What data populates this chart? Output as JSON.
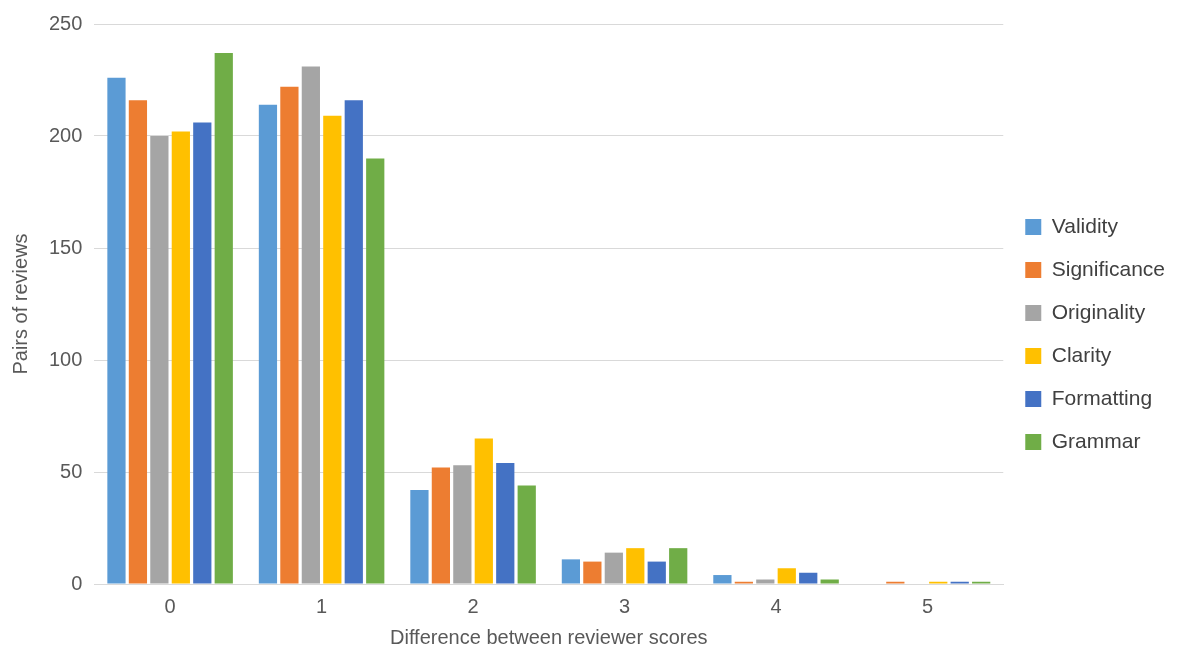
{
  "chart_data": {
    "type": "bar",
    "xlabel": "Difference between reviewer scores",
    "ylabel": "Pairs of reviews",
    "categories": [
      "0",
      "1",
      "2",
      "3",
      "4",
      "5"
    ],
    "series": [
      {
        "name": "Validity",
        "color": "#5b9bd5",
        "values": [
          226,
          214,
          42,
          11,
          4,
          0
        ]
      },
      {
        "name": "Significance",
        "color": "#ed7d31",
        "values": [
          216,
          222,
          52,
          10,
          1,
          1
        ]
      },
      {
        "name": "Originality",
        "color": "#a5a5a5",
        "values": [
          200,
          231,
          53,
          14,
          2,
          0
        ]
      },
      {
        "name": "Clarity",
        "color": "#ffc000",
        "values": [
          202,
          209,
          65,
          16,
          7,
          1
        ]
      },
      {
        "name": "Formatting",
        "color": "#4472c4",
        "values": [
          206,
          216,
          54,
          10,
          5,
          1
        ]
      },
      {
        "name": "Grammar",
        "color": "#70ad47",
        "values": [
          237,
          190,
          44,
          16,
          2,
          1
        ]
      }
    ],
    "ylim": [
      0,
      250
    ],
    "yticks": [
      0,
      50,
      100,
      150,
      200,
      250
    ],
    "grid": "y",
    "legend": "right"
  }
}
